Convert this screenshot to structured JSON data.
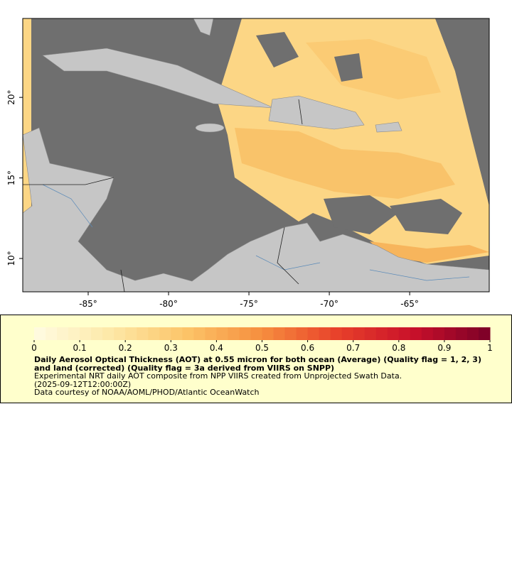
{
  "map": {
    "xlim": [
      -89.07,
      -60.05
    ],
    "ylim": [
      7.93,
      24.9
    ],
    "xticks": [
      {
        "value": -85,
        "label": "-85°"
      },
      {
        "value": -80,
        "label": "-80°"
      },
      {
        "value": -75,
        "label": "-75°"
      },
      {
        "value": -70,
        "label": "-70°"
      },
      {
        "value": -65,
        "label": "-65°"
      }
    ],
    "yticks": [
      {
        "value": 10,
        "label": "10°"
      },
      {
        "value": 15,
        "label": "15°"
      },
      {
        "value": 20,
        "label": "20°"
      }
    ]
  },
  "colorbar": {
    "range": [
      0,
      1
    ],
    "ticks": [
      0,
      0.1,
      0.2,
      0.3,
      0.4,
      0.5,
      0.6,
      0.7,
      0.8,
      0.9,
      1
    ],
    "colors": [
      "#fffbe2",
      "#fde9a8",
      "#fcc468",
      "#f68e3e",
      "#e8402a",
      "#c8102a",
      "#7a0028"
    ]
  },
  "caption": {
    "title": "Daily Aerosol Optical Thickness (AOT) at 0.55 micron for both ocean (Average) (Quality flag = 1, 2, 3) and land (corrected) (Quality flag = 3a derived from VIIRS on SNPP)",
    "lines": [
      "Experimental NRT daily AOT composite from NPP VIIRS created from Unprojected Swath Data.",
      "(2025-09-12T12:00:00Z)",
      "Data courtesy of NOAA/AOML/PHOD/Atlantic OceanWatch"
    ]
  }
}
